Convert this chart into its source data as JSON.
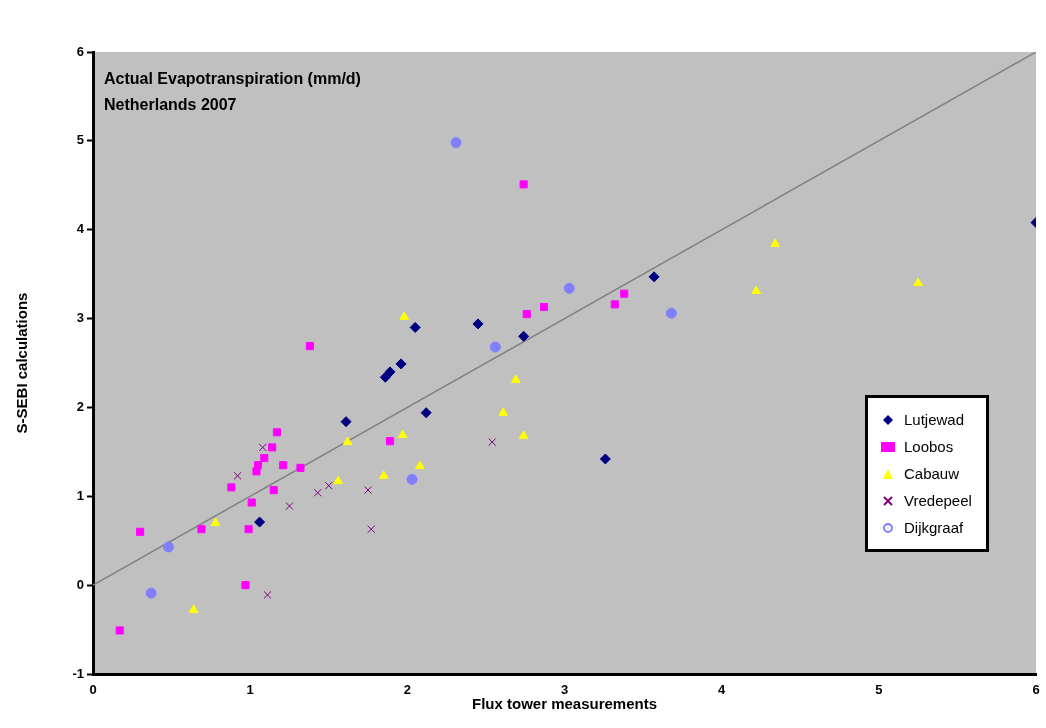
{
  "chart_data": {
    "type": "scatter",
    "title": "Actual Evapotranspiration (mm/d)",
    "subtitle": "Netherlands 2007",
    "xlabel": "Flux tower measurements",
    "ylabel": "S-SEBI calculations",
    "xlim": [
      0,
      6
    ],
    "xticks": [
      0,
      1,
      2,
      3,
      4,
      5,
      6
    ],
    "ylim": [
      -1,
      6
    ],
    "yticks": [
      -1,
      0,
      1,
      2,
      3,
      4,
      5,
      6
    ],
    "grid": false,
    "legend": "bottom right",
    "series": [
      {
        "name": "Lutjewad",
        "color": "#000080",
        "marker": "diamond",
        "x": [
          1.06,
          1.61,
          1.86,
          1.89,
          1.96,
          2.05,
          2.12,
          2.45,
          2.74,
          3.26,
          3.57,
          6.0
        ],
        "values": [
          0.71,
          1.84,
          2.34,
          2.4,
          2.49,
          2.9,
          1.94,
          2.94,
          2.8,
          1.42,
          3.47,
          4.08
        ]
      },
      {
        "name": "Loobos",
        "color": "#ff00ff",
        "marker": "square",
        "x": [
          1.38,
          1.17,
          1.14,
          1.09,
          1.05,
          1.04,
          1.21,
          1.32,
          0.88,
          1.15,
          1.01,
          0.3,
          0.69,
          0.99,
          0.97,
          0.17,
          1.89,
          2.74,
          2.76,
          2.87,
          3.38,
          3.32
        ],
        "values": [
          2.69,
          1.72,
          1.55,
          1.43,
          1.35,
          1.28,
          1.35,
          1.32,
          1.1,
          1.07,
          0.93,
          0.6,
          0.63,
          0.63,
          0.0,
          -0.51,
          1.62,
          4.51,
          3.05,
          3.13,
          3.28,
          3.16
        ]
      },
      {
        "name": "Cabauw",
        "color": "#ffff00",
        "marker": "triangle",
        "x": [
          0.78,
          1.62,
          1.97,
          1.85,
          1.56,
          2.08,
          2.69,
          2.61,
          2.74,
          0.64,
          1.98,
          4.34,
          4.22,
          5.25
        ],
        "values": [
          0.7,
          1.61,
          1.69,
          1.23,
          1.17,
          1.34,
          2.31,
          1.94,
          1.68,
          -0.28,
          3.02,
          3.84,
          3.31,
          3.4
        ]
      },
      {
        "name": "Vredepeel",
        "color": "#800080",
        "marker": "cross",
        "x": [
          1.08,
          0.92,
          1.25,
          1.43,
          1.5,
          1.75,
          1.77,
          2.54,
          1.11
        ],
        "values": [
          1.55,
          1.23,
          0.89,
          1.04,
          1.12,
          1.07,
          0.63,
          1.61,
          -0.11
        ]
      },
      {
        "name": "Dijkgraaf",
        "color": "#8080ff",
        "marker": "circle",
        "x": [
          2.31,
          3.03,
          2.56,
          2.03,
          0.48,
          0.37,
          3.68
        ],
        "values": [
          4.98,
          3.34,
          2.68,
          1.19,
          0.43,
          -0.09,
          3.06
        ]
      },
      {
        "type": "line",
        "color": "#808080",
        "marker": "none",
        "x": [
          0,
          6
        ],
        "values": [
          0,
          6
        ]
      }
    ]
  }
}
